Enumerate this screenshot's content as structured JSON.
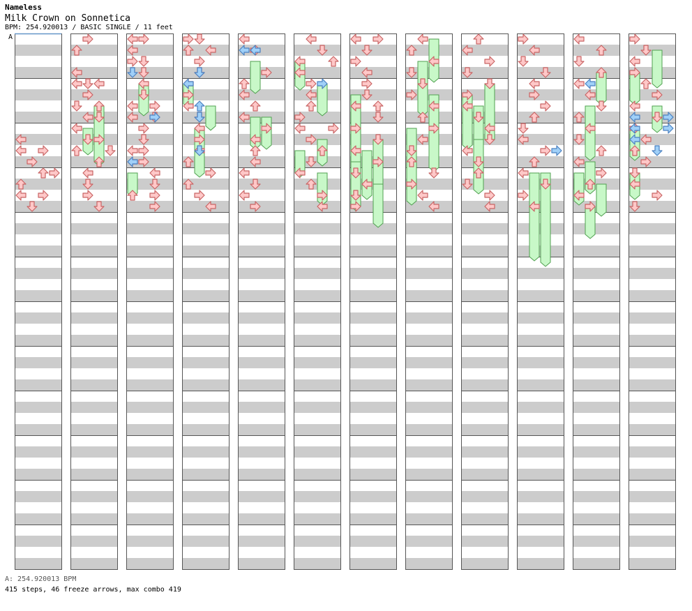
{
  "header": {
    "author": "Nameless",
    "song_title": "Milk Crown on Sonnetica",
    "chart_info": "BPM: 254.920013 / BASIC SINGLE / 11 feet"
  },
  "bpm_segment_label": "A",
  "footer": {
    "bpm_line": "A: 254.920013 BPM",
    "stats_line": "415 steps, 46 freeze arrows, max combo 419"
  },
  "colors": {
    "arrow_fill": "#ffc8c8",
    "arrow_stroke": "#c86464",
    "shock_fill": "#a0d0f8",
    "shock_stroke": "#4a80c0",
    "freeze_fill": "#c8f8c8",
    "freeze_stroke": "#50a050",
    "stripe": "#cccccc",
    "border": "#555555",
    "bpm_line": "#6496c8"
  },
  "chart_data": {
    "type": "step-chart",
    "title": "Milk Crown on Sonnetica",
    "difficulty": "BASIC SINGLE",
    "feet": 11,
    "bpm": 254.920013,
    "steps_total": 415,
    "freeze_arrows_total": 46,
    "max_combo": 419,
    "columns": 12,
    "measures_per_column": 12,
    "rows_per_measure": 4,
    "notes": [
      [
        0,
        9,
        0,
        "L"
      ],
      [
        0,
        10,
        0,
        "L"
      ],
      [
        0,
        10,
        2,
        "R"
      ],
      [
        0,
        11,
        1,
        "R"
      ],
      [
        0,
        12,
        2,
        "U"
      ],
      [
        0,
        12,
        3,
        "R"
      ],
      [
        0,
        13,
        0,
        "U"
      ],
      [
        0,
        14,
        0,
        "L"
      ],
      [
        0,
        14,
        2,
        "R"
      ],
      [
        0,
        15,
        1,
        "D"
      ],
      [
        1,
        0,
        1,
        "R"
      ],
      [
        1,
        1,
        0,
        "U"
      ],
      [
        1,
        3,
        0,
        "L"
      ],
      [
        1,
        4,
        0,
        "L"
      ],
      [
        1,
        4,
        1,
        "D"
      ],
      [
        1,
        4,
        2,
        "L"
      ],
      [
        1,
        5,
        1,
        "R"
      ],
      [
        1,
        6,
        0,
        "D"
      ],
      [
        1,
        6,
        2,
        "U"
      ],
      [
        1,
        7,
        1,
        "L"
      ],
      [
        1,
        7,
        2,
        "D"
      ],
      [
        1,
        8,
        0,
        "L"
      ],
      [
        1,
        9,
        1,
        "D"
      ],
      [
        1,
        9,
        2,
        "R"
      ],
      [
        1,
        10,
        0,
        "U"
      ],
      [
        1,
        10,
        3,
        "D"
      ],
      [
        1,
        11,
        2,
        "U"
      ],
      [
        1,
        12,
        1,
        "L"
      ],
      [
        1,
        13,
        1,
        "D"
      ],
      [
        1,
        14,
        1,
        "R"
      ],
      [
        1,
        15,
        2,
        "D"
      ],
      [
        2,
        0,
        0,
        "L"
      ],
      [
        2,
        0,
        1,
        "R"
      ],
      [
        2,
        1,
        0,
        "L"
      ],
      [
        2,
        2,
        0,
        "R"
      ],
      [
        2,
        2,
        1,
        "D"
      ],
      [
        2,
        3,
        1,
        "D"
      ],
      [
        2,
        4,
        1,
        "L"
      ],
      [
        2,
        5,
        1,
        "D"
      ],
      [
        2,
        6,
        0,
        "L"
      ],
      [
        2,
        6,
        2,
        "R"
      ],
      [
        2,
        7,
        0,
        "L"
      ],
      [
        2,
        7,
        2,
        "D"
      ],
      [
        2,
        8,
        1,
        "R"
      ],
      [
        2,
        9,
        1,
        "D"
      ],
      [
        2,
        10,
        0,
        "L"
      ],
      [
        2,
        10,
        1,
        "R"
      ],
      [
        2,
        11,
        0,
        "L"
      ],
      [
        2,
        11,
        1,
        "R"
      ],
      [
        2,
        12,
        2,
        "L"
      ],
      [
        2,
        13,
        2,
        "D"
      ],
      [
        2,
        14,
        0,
        "U"
      ],
      [
        2,
        14,
        2,
        "R"
      ],
      [
        2,
        15,
        2,
        "R"
      ],
      [
        3,
        0,
        0,
        "R"
      ],
      [
        3,
        0,
        1,
        "D"
      ],
      [
        3,
        1,
        0,
        "U"
      ],
      [
        3,
        1,
        2,
        "L"
      ],
      [
        3,
        2,
        1,
        "R"
      ],
      [
        3,
        3,
        1,
        "D"
      ],
      [
        3,
        4,
        0,
        "L"
      ],
      [
        3,
        5,
        0,
        "R"
      ],
      [
        3,
        6,
        0,
        "L"
      ],
      [
        3,
        7,
        1,
        "D"
      ],
      [
        3,
        8,
        1,
        "L"
      ],
      [
        3,
        9,
        1,
        "R"
      ],
      [
        3,
        10,
        1,
        "L"
      ],
      [
        3,
        11,
        0,
        "U"
      ],
      [
        3,
        12,
        2,
        "R"
      ],
      [
        3,
        13,
        0,
        "U"
      ],
      [
        3,
        14,
        1,
        "R"
      ],
      [
        3,
        15,
        2,
        "L"
      ],
      [
        4,
        0,
        0,
        "L"
      ],
      [
        4,
        1,
        1,
        "R"
      ],
      [
        4,
        3,
        2,
        "R"
      ],
      [
        4,
        4,
        0,
        "U"
      ],
      [
        4,
        5,
        0,
        "L"
      ],
      [
        4,
        6,
        1,
        "U"
      ],
      [
        4,
        7,
        0,
        "L"
      ],
      [
        4,
        8,
        2,
        "R"
      ],
      [
        4,
        9,
        1,
        "L"
      ],
      [
        4,
        10,
        1,
        "U"
      ],
      [
        4,
        11,
        1,
        "L"
      ],
      [
        4,
        12,
        0,
        "L"
      ],
      [
        4,
        13,
        1,
        "D"
      ],
      [
        4,
        14,
        0,
        "L"
      ],
      [
        4,
        15,
        1,
        "R"
      ],
      [
        5,
        0,
        1,
        "L"
      ],
      [
        5,
        1,
        2,
        "D"
      ],
      [
        5,
        2,
        0,
        "L"
      ],
      [
        5,
        2,
        3,
        "U"
      ],
      [
        5,
        3,
        0,
        "L"
      ],
      [
        5,
        4,
        1,
        "R"
      ],
      [
        5,
        5,
        1,
        "L"
      ],
      [
        5,
        6,
        1,
        "U"
      ],
      [
        5,
        7,
        0,
        "R"
      ],
      [
        5,
        8,
        0,
        "L"
      ],
      [
        5,
        8,
        3,
        "R"
      ],
      [
        5,
        9,
        1,
        "R"
      ],
      [
        5,
        10,
        2,
        "U"
      ],
      [
        5,
        11,
        1,
        "D"
      ],
      [
        5,
        12,
        0,
        "L"
      ],
      [
        5,
        13,
        1,
        "U"
      ],
      [
        5,
        14,
        2,
        "R"
      ],
      [
        5,
        15,
        2,
        "L"
      ],
      [
        6,
        0,
        0,
        "L"
      ],
      [
        6,
        0,
        2,
        "R"
      ],
      [
        6,
        1,
        1,
        "D"
      ],
      [
        6,
        2,
        0,
        "R"
      ],
      [
        6,
        3,
        1,
        "L"
      ],
      [
        6,
        4,
        1,
        "R"
      ],
      [
        6,
        5,
        1,
        "D"
      ],
      [
        6,
        6,
        0,
        "L"
      ],
      [
        6,
        6,
        2,
        "U"
      ],
      [
        6,
        7,
        2,
        "D"
      ],
      [
        6,
        8,
        0,
        "R"
      ],
      [
        6,
        9,
        2,
        "D"
      ],
      [
        6,
        10,
        0,
        "L"
      ],
      [
        6,
        11,
        2,
        "R"
      ],
      [
        6,
        12,
        0,
        "D"
      ],
      [
        6,
        13,
        1,
        "L"
      ],
      [
        6,
        14,
        0,
        "D"
      ],
      [
        6,
        15,
        0,
        "R"
      ],
      [
        7,
        0,
        1,
        "L"
      ],
      [
        7,
        1,
        0,
        "U"
      ],
      [
        7,
        2,
        2,
        "L"
      ],
      [
        7,
        3,
        0,
        "D"
      ],
      [
        7,
        4,
        1,
        "D"
      ],
      [
        7,
        5,
        0,
        "R"
      ],
      [
        7,
        6,
        2,
        "L"
      ],
      [
        7,
        7,
        1,
        "U"
      ],
      [
        7,
        8,
        2,
        "R"
      ],
      [
        7,
        9,
        1,
        "L"
      ],
      [
        7,
        10,
        0,
        "D"
      ],
      [
        7,
        11,
        0,
        "U"
      ],
      [
        7,
        12,
        2,
        "D"
      ],
      [
        7,
        13,
        0,
        "R"
      ],
      [
        7,
        14,
        1,
        "L"
      ],
      [
        7,
        15,
        2,
        "L"
      ],
      [
        8,
        0,
        1,
        "U"
      ],
      [
        8,
        1,
        0,
        "L"
      ],
      [
        8,
        2,
        2,
        "R"
      ],
      [
        8,
        3,
        0,
        "D"
      ],
      [
        8,
        4,
        2,
        "D"
      ],
      [
        8,
        5,
        0,
        "R"
      ],
      [
        8,
        6,
        0,
        "L"
      ],
      [
        8,
        7,
        1,
        "D"
      ],
      [
        8,
        8,
        2,
        "L"
      ],
      [
        8,
        9,
        2,
        "D"
      ],
      [
        8,
        10,
        0,
        "L"
      ],
      [
        8,
        11,
        1,
        "D"
      ],
      [
        8,
        12,
        1,
        "U"
      ],
      [
        8,
        13,
        0,
        "D"
      ],
      [
        8,
        14,
        2,
        "R"
      ],
      [
        8,
        15,
        2,
        "L"
      ],
      [
        9,
        0,
        0,
        "R"
      ],
      [
        9,
        1,
        1,
        "L"
      ],
      [
        9,
        2,
        0,
        "D"
      ],
      [
        9,
        3,
        2,
        "D"
      ],
      [
        9,
        4,
        1,
        "L"
      ],
      [
        9,
        5,
        1,
        "R"
      ],
      [
        9,
        6,
        2,
        "R"
      ],
      [
        9,
        7,
        1,
        "U"
      ],
      [
        9,
        8,
        0,
        "D"
      ],
      [
        9,
        9,
        0,
        "L"
      ],
      [
        9,
        10,
        2,
        "R"
      ],
      [
        9,
        11,
        1,
        "U"
      ],
      [
        9,
        12,
        0,
        "L"
      ],
      [
        9,
        13,
        2,
        "D"
      ],
      [
        9,
        14,
        0,
        "R"
      ],
      [
        9,
        15,
        1,
        "L"
      ],
      [
        10,
        0,
        0,
        "L"
      ],
      [
        10,
        1,
        2,
        "U"
      ],
      [
        10,
        2,
        0,
        "D"
      ],
      [
        10,
        3,
        2,
        "U"
      ],
      [
        10,
        4,
        0,
        "L"
      ],
      [
        10,
        5,
        1,
        "L"
      ],
      [
        10,
        6,
        2,
        "D"
      ],
      [
        10,
        7,
        0,
        "U"
      ],
      [
        10,
        8,
        1,
        "L"
      ],
      [
        10,
        9,
        0,
        "D"
      ],
      [
        10,
        10,
        2,
        "U"
      ],
      [
        10,
        11,
        0,
        "L"
      ],
      [
        10,
        12,
        2,
        "R"
      ],
      [
        10,
        13,
        1,
        "U"
      ],
      [
        10,
        14,
        0,
        "L"
      ],
      [
        10,
        15,
        1,
        "R"
      ],
      [
        11,
        0,
        0,
        "R"
      ],
      [
        11,
        1,
        1,
        "D"
      ],
      [
        11,
        2,
        0,
        "L"
      ],
      [
        11,
        3,
        0,
        "R"
      ],
      [
        11,
        4,
        1,
        "U"
      ],
      [
        11,
        5,
        2,
        "R"
      ],
      [
        11,
        6,
        0,
        "L"
      ],
      [
        11,
        7,
        2,
        "D"
      ],
      [
        11,
        8,
        0,
        "R"
      ],
      [
        11,
        9,
        1,
        "L"
      ],
      [
        11,
        10,
        0,
        "U"
      ],
      [
        11,
        11,
        1,
        "R"
      ],
      [
        11,
        12,
        0,
        "D"
      ],
      [
        11,
        13,
        0,
        "L"
      ],
      [
        11,
        14,
        2,
        "R"
      ],
      [
        11,
        15,
        0,
        "D"
      ]
    ],
    "shocks": [
      [
        2,
        3,
        0,
        "D"
      ],
      [
        2,
        7,
        2,
        "R"
      ],
      [
        2,
        11,
        0,
        "L"
      ],
      [
        3,
        3,
        1,
        "D"
      ],
      [
        3,
        4,
        0,
        "L"
      ],
      [
        3,
        6,
        1,
        "U"
      ],
      [
        3,
        7,
        1,
        "D"
      ],
      [
        3,
        10,
        1,
        "D"
      ],
      [
        4,
        1,
        0,
        "L"
      ],
      [
        4,
        1,
        1,
        "L"
      ],
      [
        5,
        4,
        2,
        "R"
      ],
      [
        9,
        10,
        3,
        "R"
      ],
      [
        10,
        4,
        1,
        "L"
      ],
      [
        11,
        7,
        0,
        "L"
      ],
      [
        11,
        7,
        3,
        "R"
      ],
      [
        11,
        8,
        0,
        "L"
      ],
      [
        11,
        8,
        3,
        "R"
      ],
      [
        11,
        9,
        0,
        "L"
      ],
      [
        11,
        10,
        2,
        "D"
      ]
    ],
    "freezes": [
      [
        1,
        6,
        2,
        2.5
      ],
      [
        1,
        7,
        2,
        2.2
      ],
      [
        1,
        8,
        1,
        2.0
      ],
      [
        1,
        9,
        2,
        2.0
      ],
      [
        2,
        4,
        1,
        2.5
      ],
      [
        2,
        12,
        0,
        1.8
      ],
      [
        3,
        4,
        0,
        1.8
      ],
      [
        3,
        6,
        2,
        1.8
      ],
      [
        3,
        8,
        1,
        2.0
      ],
      [
        3,
        10,
        1,
        2.0
      ],
      [
        4,
        2,
        1,
        2.5
      ],
      [
        4,
        7,
        2,
        2.5
      ],
      [
        4,
        7,
        1,
        2.5
      ],
      [
        5,
        2,
        0,
        2.2
      ],
      [
        5,
        4,
        2,
        2.5
      ],
      [
        5,
        9,
        2,
        2.0
      ],
      [
        5,
        10,
        0,
        2.0
      ],
      [
        5,
        12,
        2,
        2.5
      ],
      [
        6,
        5,
        0,
        6.0
      ],
      [
        6,
        9,
        2,
        4.5
      ],
      [
        6,
        10,
        1,
        4.0
      ],
      [
        6,
        11,
        0,
        4.0
      ],
      [
        6,
        13,
        2,
        3.5
      ],
      [
        7,
        0,
        2,
        3.5
      ],
      [
        7,
        2,
        1,
        4.5
      ],
      [
        7,
        5,
        2,
        6.5
      ],
      [
        7,
        8,
        0,
        4.0
      ],
      [
        7,
        11,
        0,
        3.5
      ],
      [
        8,
        4,
        2,
        5.0
      ],
      [
        8,
        5,
        0,
        4.5
      ],
      [
        8,
        6,
        1,
        4.0
      ],
      [
        8,
        9,
        1,
        4.5
      ],
      [
        9,
        12,
        2,
        8.0
      ],
      [
        9,
        12,
        1,
        7.5
      ],
      [
        10,
        3,
        2,
        2.5
      ],
      [
        10,
        6,
        1,
        3.0
      ],
      [
        10,
        8,
        1,
        2.5
      ],
      [
        10,
        11,
        1,
        2.5
      ],
      [
        10,
        12,
        0,
        2.5
      ],
      [
        10,
        13,
        2,
        2.5
      ],
      [
        10,
        15,
        1,
        2.5
      ],
      [
        11,
        1,
        2,
        3.0
      ],
      [
        11,
        3,
        0,
        2.5
      ],
      [
        11,
        6,
        2,
        2.0
      ],
      [
        11,
        8,
        0,
        2.5
      ],
      [
        11,
        12,
        0,
        2.0
      ]
    ]
  }
}
